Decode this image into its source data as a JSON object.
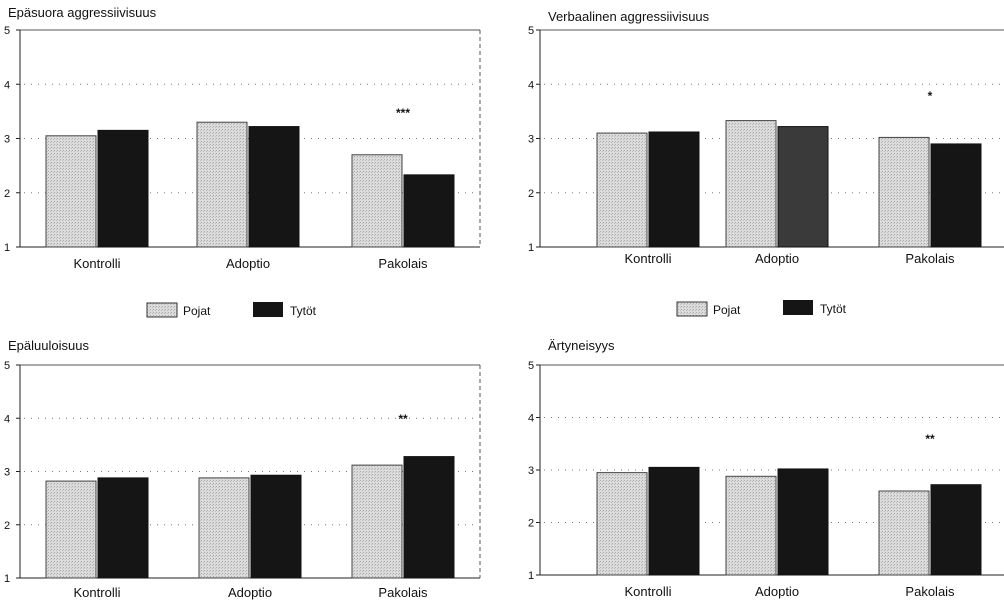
{
  "legend": {
    "boys": "Pojat",
    "girls": "Tytöt"
  },
  "colors": {
    "boys": "#d8d8d8",
    "girls": "#151515",
    "girls_alt": "#3a3a3a"
  },
  "chart_data": [
    {
      "type": "bar",
      "title": "Epäsuora aggressiivisuus",
      "categories": [
        "Kontrolli",
        "Adoptio",
        "Pakolais"
      ],
      "series": [
        {
          "name": "Pojat",
          "values": [
            3.05,
            3.3,
            2.7
          ]
        },
        {
          "name": "Tytöt",
          "values": [
            3.15,
            3.22,
            2.33
          ]
        }
      ],
      "ylim": [
        1,
        5
      ],
      "yticks": [
        "1",
        "2",
        "3",
        "4",
        "5"
      ],
      "significance": {
        "category_index": 2,
        "label": "***"
      },
      "grid": true
    },
    {
      "type": "bar",
      "title": "Verbaalinen aggressiivisuus",
      "categories": [
        "Kontrolli",
        "Adoptio",
        "Pakolais"
      ],
      "series": [
        {
          "name": "Pojat",
          "values": [
            3.1,
            3.33,
            3.02
          ]
        },
        {
          "name": "Tytöt",
          "values": [
            3.12,
            3.22,
            2.9
          ]
        }
      ],
      "ylim": [
        1,
        5
      ],
      "yticks": [
        "1",
        "2",
        "3",
        "4",
        "5"
      ],
      "significance": {
        "category_index": 2,
        "label": "*"
      },
      "grid": true
    },
    {
      "type": "bar",
      "title": "Epäluuloisuus",
      "categories": [
        "Kontrolli",
        "Adoptio",
        "Pakolais"
      ],
      "series": [
        {
          "name": "Pojat",
          "values": [
            2.82,
            2.88,
            3.12
          ]
        },
        {
          "name": "Tytöt",
          "values": [
            2.88,
            2.93,
            3.28
          ]
        }
      ],
      "ylim": [
        1,
        5
      ],
      "yticks": [
        "1",
        "2",
        "3",
        "4",
        "5"
      ],
      "significance": {
        "category_index": 2,
        "label": "**"
      },
      "grid": true
    },
    {
      "type": "bar",
      "title": "Ärtyneisyys",
      "categories": [
        "Kontrolli",
        "Adoptio",
        "Pakolais"
      ],
      "series": [
        {
          "name": "Pojat",
          "values": [
            2.95,
            2.88,
            2.6
          ]
        },
        {
          "name": "Tytöt",
          "values": [
            3.05,
            3.02,
            2.72
          ]
        }
      ],
      "ylim": [
        1,
        5
      ],
      "yticks": [
        "1",
        "2",
        "3",
        "4",
        "5"
      ],
      "significance": {
        "category_index": 2,
        "label": "**"
      },
      "grid": true
    }
  ]
}
